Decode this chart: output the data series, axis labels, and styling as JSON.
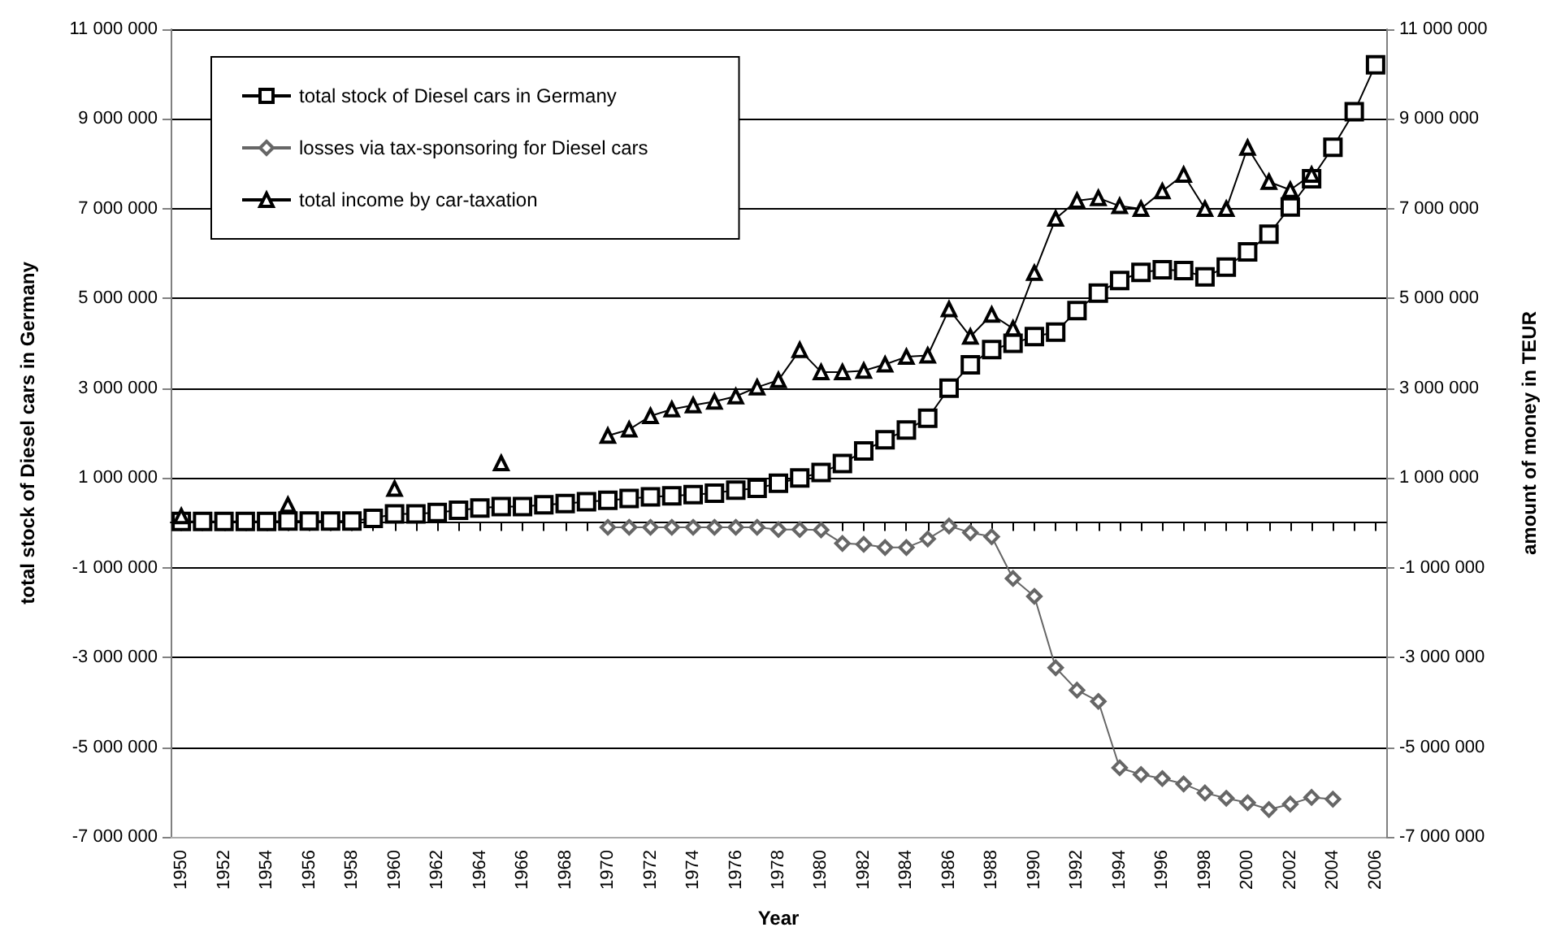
{
  "chart_data": {
    "type": "line",
    "xlabel": "Year",
    "ylabel": "total stock of Diesel cars in Germany",
    "y2label": "amount of money in TEUR",
    "categories": [
      "1950",
      null,
      "1952",
      null,
      "1954",
      null,
      "1956",
      null,
      "1958",
      null,
      "1960",
      null,
      "1962",
      null,
      "1964",
      null,
      "1966",
      null,
      "1968",
      null,
      "1970",
      null,
      "1972",
      null,
      "1974",
      null,
      "1976",
      null,
      "1978",
      null,
      "1980",
      null,
      "1982",
      null,
      "1984",
      null,
      "1986",
      null,
      "1988",
      null,
      "1990",
      null,
      "1992",
      null,
      "1994",
      null,
      "1996",
      null,
      "1998",
      null,
      "2000",
      null,
      "2002",
      null,
      "2004",
      null,
      "2006"
    ],
    "series": [
      {
        "name": "total stock of Diesel cars in Germany",
        "color": "#000000",
        "marker": "square",
        "values": [
          30000,
          30000,
          30000,
          30000,
          30000,
          40000,
          40000,
          40000,
          40000,
          100000,
          200000,
          200000,
          230000,
          280000,
          330000,
          360000,
          360000,
          400000,
          430000,
          470000,
          500000,
          540000,
          580000,
          600000,
          630000,
          660000,
          730000,
          770000,
          880000,
          1000000,
          1120000,
          1320000,
          1600000,
          1850000,
          2070000,
          2330000,
          3000000,
          3520000,
          3860000,
          4000000,
          4150000,
          4250000,
          4730000,
          5120000,
          5400000,
          5580000,
          5640000,
          5620000,
          5480000,
          5700000,
          6040000,
          6430000,
          7040000,
          7670000,
          8370000,
          9160000,
          10210000
        ]
      },
      {
        "name": "losses via tax-sponsoring for Diesel cars",
        "color": "#666666",
        "marker": "diamond",
        "values": [
          null,
          null,
          null,
          null,
          null,
          null,
          null,
          null,
          null,
          null,
          null,
          null,
          null,
          null,
          null,
          null,
          null,
          null,
          null,
          null,
          -100000,
          -100000,
          -100000,
          -100000,
          -100000,
          -100000,
          -100000,
          -100000,
          -150000,
          -150000,
          -160000,
          -460000,
          -480000,
          -550000,
          -550000,
          -360000,
          -70000,
          -220000,
          -310000,
          -1240000,
          -1640000,
          -3230000,
          -3730000,
          -3980000,
          -5460000,
          -5610000,
          -5700000,
          -5820000,
          -6020000,
          -6140000,
          -6240000,
          -6390000,
          -6270000,
          -6120000,
          -6160000,
          null,
          null
        ]
      },
      {
        "name": "total income by car-taxation",
        "color": "#000000",
        "marker": "triangle",
        "values": [
          150000,
          null,
          null,
          null,
          null,
          400000,
          null,
          null,
          null,
          null,
          760000,
          null,
          null,
          null,
          null,
          1330000,
          null,
          null,
          null,
          null,
          1940000,
          2080000,
          2380000,
          2530000,
          2620000,
          2700000,
          2820000,
          3020000,
          3180000,
          3850000,
          3360000,
          3360000,
          3390000,
          3530000,
          3700000,
          3730000,
          4760000,
          4150000,
          4640000,
          4330000,
          5570000,
          6780000,
          7180000,
          7240000,
          7060000,
          7000000,
          7390000,
          7760000,
          7000000,
          7000000,
          8360000,
          7600000,
          7420000,
          7760000,
          null,
          null,
          null
        ]
      }
    ],
    "ylim": [
      -7000000,
      11000000
    ],
    "yticks": [
      {
        "value": -7000000,
        "label": "-7 000 000"
      },
      {
        "value": -5000000,
        "label": "-5 000 000"
      },
      {
        "value": -3000000,
        "label": "-3 000 000"
      },
      {
        "value": -1000000,
        "label": "-1 000 000"
      },
      {
        "value": 1000000,
        "label": "1 000 000"
      },
      {
        "value": 3000000,
        "label": "3 000 000"
      },
      {
        "value": 5000000,
        "label": "5 000 000"
      },
      {
        "value": 7000000,
        "label": "7 000 000"
      },
      {
        "value": 9000000,
        "label": "9 000 000"
      },
      {
        "value": 11000000,
        "label": "11 000 000"
      }
    ],
    "y2lim": [
      -7000000,
      11000000
    ],
    "y2ticks": [
      {
        "value": -7000000,
        "label": "-7 000 000"
      },
      {
        "value": -5000000,
        "label": "-5 000 000"
      },
      {
        "value": -3000000,
        "label": "-3 000 000"
      },
      {
        "value": -1000000,
        "label": "-1 000 000"
      },
      {
        "value": 1000000,
        "label": "1 000 000"
      },
      {
        "value": 3000000,
        "label": "3 000 000"
      },
      {
        "value": 5000000,
        "label": "5 000 000"
      },
      {
        "value": 7000000,
        "label": "7 000 000"
      },
      {
        "value": 9000000,
        "label": "9 000 000"
      },
      {
        "value": 11000000,
        "label": "11 000 000"
      }
    ],
    "grid": "y",
    "legend": "top left"
  }
}
